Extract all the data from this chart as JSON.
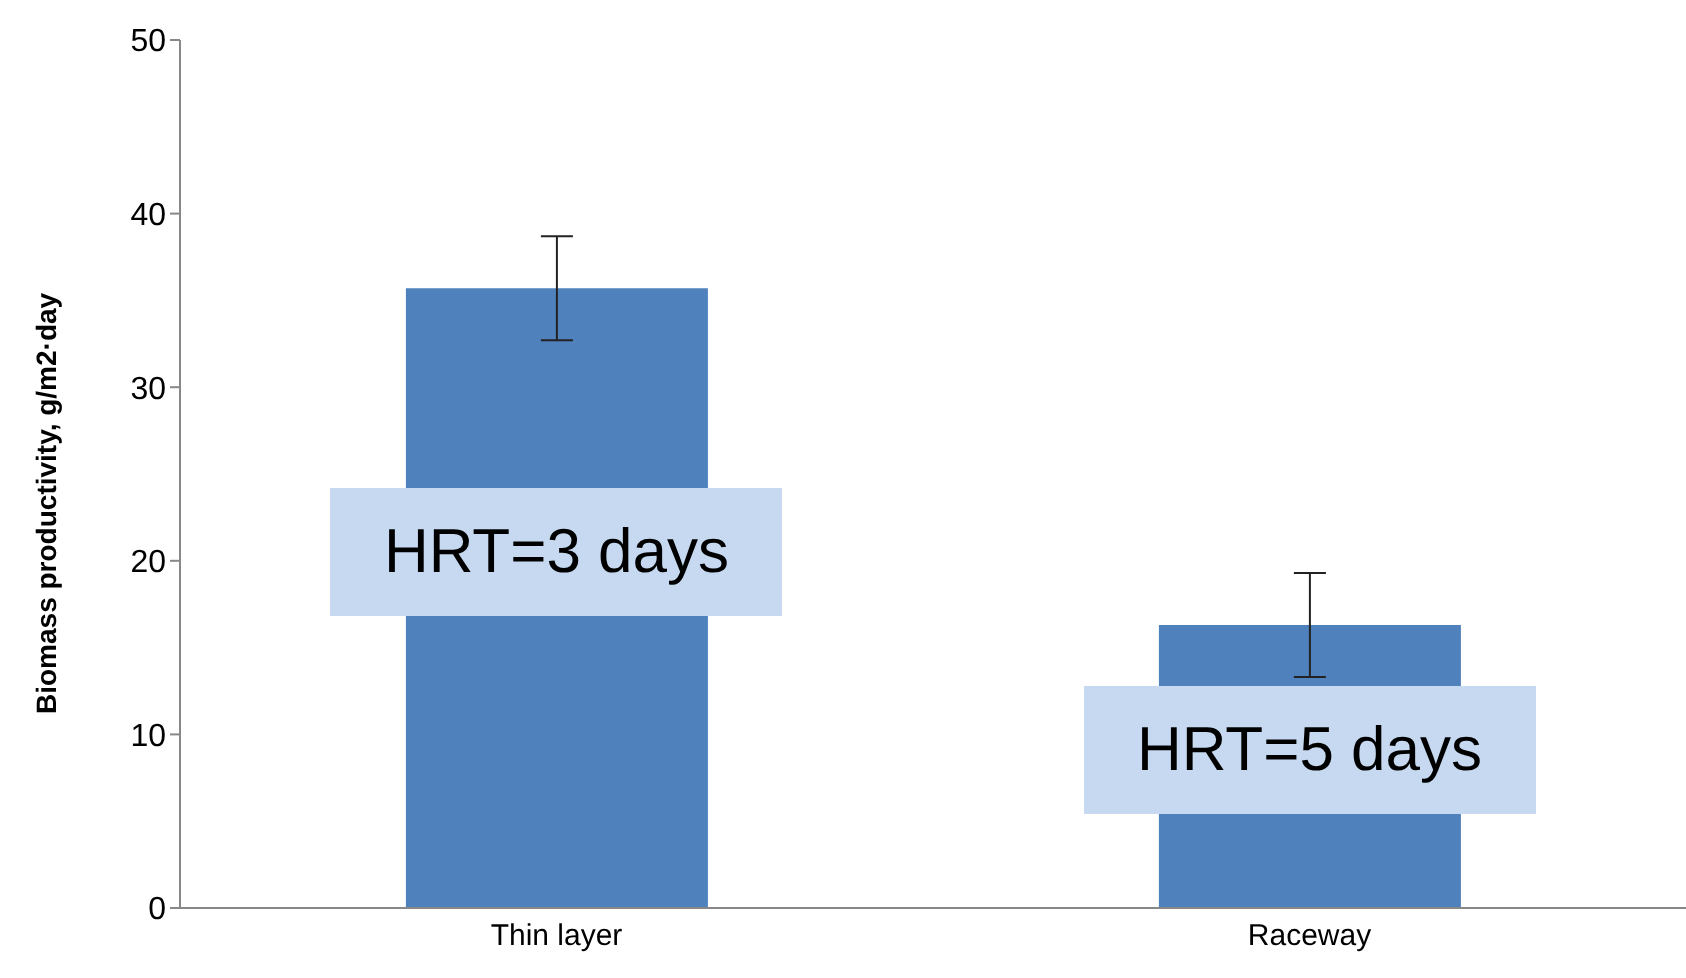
{
  "chart_data": {
    "type": "bar",
    "ylabel": "Biomass productivity, g/m2·day",
    "categories": [
      "Thin layer",
      "Raceway"
    ],
    "values": [
      35.7,
      16.3
    ],
    "errors": [
      3,
      3
    ],
    "color": "#4f81bd",
    "ylim": [
      0,
      50
    ],
    "yticks": [
      0,
      10,
      20,
      30,
      40,
      50
    ],
    "grid": false,
    "legend": false,
    "annotations": [
      "HRT=3 days",
      "HRT=5 days"
    ]
  }
}
